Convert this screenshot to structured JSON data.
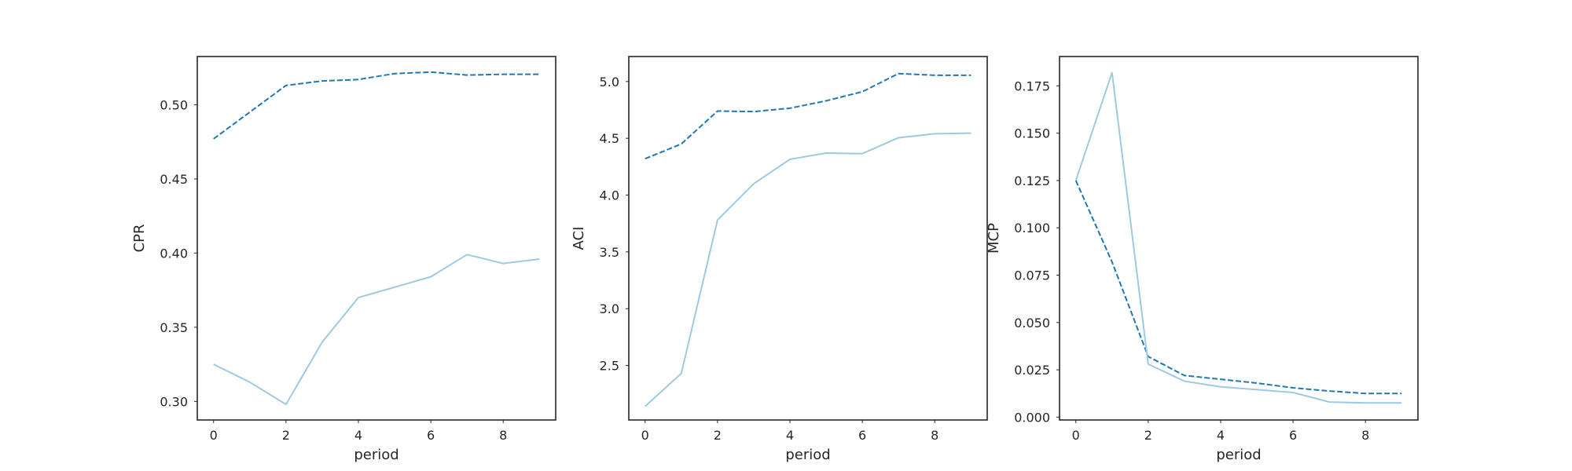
{
  "chart_data": [
    {
      "type": "line",
      "title": "",
      "xlabel": "period",
      "ylabel": "CPR",
      "xlim": [
        -0.45,
        9.45
      ],
      "ylim": [
        0.2875,
        0.5325
      ],
      "xticks": [
        0,
        2,
        4,
        6,
        8
      ],
      "xtick_labels": [
        "0",
        "2",
        "4",
        "6",
        "8"
      ],
      "yticks": [
        0.3,
        0.35,
        0.4,
        0.45,
        0.5
      ],
      "ytick_labels": [
        "0.30",
        "0.35",
        "0.40",
        "0.45",
        "0.50"
      ],
      "grid": false,
      "x": [
        0,
        1,
        2,
        3,
        4,
        5,
        6,
        7,
        8,
        9
      ],
      "series": [
        {
          "color": "#1f77b4",
          "linestyle": "dashed",
          "values": [
            0.477,
            0.495,
            0.513,
            0.516,
            0.517,
            0.521,
            0.522,
            0.52,
            0.5205,
            0.5205
          ]
        },
        {
          "color": "#9ecae1",
          "linestyle": "solid",
          "values": [
            0.325,
            0.313,
            0.298,
            0.34,
            0.37,
            0.377,
            0.384,
            0.399,
            0.393,
            0.396
          ]
        }
      ]
    },
    {
      "type": "line",
      "title": "",
      "xlabel": "period",
      "ylabel": "ACI",
      "xlim": [
        -0.45,
        9.45
      ],
      "ylim": [
        2.02,
        5.22
      ],
      "xticks": [
        0,
        2,
        4,
        6,
        8
      ],
      "xtick_labels": [
        "0",
        "2",
        "4",
        "6",
        "8"
      ],
      "yticks": [
        2.5,
        3.0,
        3.5,
        4.0,
        4.5,
        5.0
      ],
      "ytick_labels": [
        "2.5",
        "3.0",
        "3.5",
        "4.0",
        "4.5",
        "5.0"
      ],
      "grid": false,
      "x": [
        0,
        1,
        2,
        3,
        4,
        5,
        6,
        7,
        8,
        9
      ],
      "series": [
        {
          "color": "#1f77b4",
          "linestyle": "dashed",
          "values": [
            4.32,
            4.45,
            4.74,
            4.735,
            4.765,
            4.83,
            4.91,
            5.07,
            5.055,
            5.055
          ]
        },
        {
          "color": "#9ecae1",
          "linestyle": "solid",
          "values": [
            2.14,
            2.43,
            3.78,
            4.1,
            4.315,
            4.37,
            4.365,
            4.505,
            4.54,
            4.545
          ]
        }
      ]
    },
    {
      "type": "line",
      "title": "",
      "xlabel": "period",
      "ylabel": "MCP",
      "xlim": [
        -0.45,
        9.45
      ],
      "ylim": [
        -0.0015,
        0.1905
      ],
      "xticks": [
        0,
        2,
        4,
        6,
        8
      ],
      "xtick_labels": [
        "0",
        "2",
        "4",
        "6",
        "8"
      ],
      "yticks": [
        0.0,
        0.025,
        0.05,
        0.075,
        0.1,
        0.125,
        0.15,
        0.175
      ],
      "ytick_labels": [
        "0.000",
        "0.025",
        "0.050",
        "0.075",
        "0.100",
        "0.125",
        "0.150",
        "0.175"
      ],
      "grid": false,
      "x": [
        0,
        1,
        2,
        3,
        4,
        5,
        6,
        7,
        8,
        9
      ],
      "series": [
        {
          "color": "#1f77b4",
          "linestyle": "dashed",
          "values": [
            0.125,
            0.082,
            0.032,
            0.022,
            0.02,
            0.018,
            0.0155,
            0.0138,
            0.0125,
            0.0125
          ]
        },
        {
          "color": "#9ecae1",
          "linestyle": "solid",
          "values": [
            0.125,
            0.182,
            0.028,
            0.019,
            0.016,
            0.0145,
            0.013,
            0.008,
            0.0075,
            0.0075
          ]
        }
      ]
    }
  ]
}
